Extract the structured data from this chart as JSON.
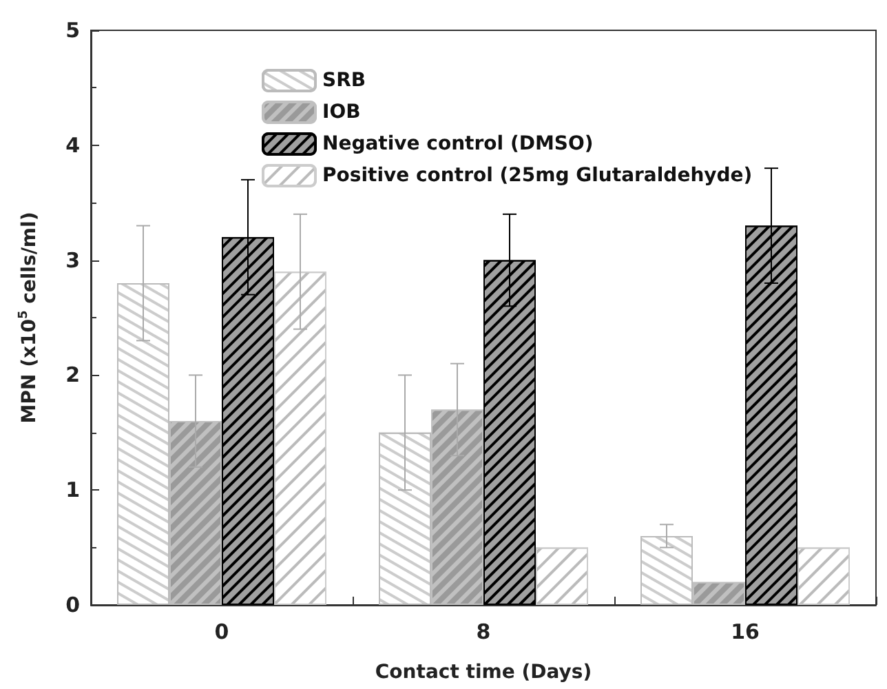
{
  "chart_data": {
    "type": "bar",
    "xlabel": "Contact time (Days)",
    "ylabel": "MPN (x10$^{5}$ cells/ml)",
    "categories": [
      "0",
      "8",
      "16"
    ],
    "series": [
      {
        "name": "SRB",
        "color": "#ffffff",
        "values": [
          2.8,
          1.5,
          0.6
        ],
        "errors": [
          0.5,
          0.5,
          0.1
        ]
      },
      {
        "name": "IOB",
        "color": "#c0c0c0",
        "values": [
          1.6,
          1.7,
          0.2
        ],
        "errors": [
          0.4,
          0.4,
          null
        ]
      },
      {
        "name": "Negative control (DMSO)",
        "color": "#a0a0a0",
        "values": [
          3.2,
          3.0,
          3.3
        ],
        "errors": [
          0.5,
          0.4,
          0.5
        ]
      },
      {
        "name": "Positive control (25mg Glutaraldehyde)",
        "color": "#ffffff",
        "values": [
          2.9,
          0.5,
          0.5
        ],
        "errors": [
          0.5,
          null,
          null
        ]
      }
    ],
    "ylim": [
      0,
      5
    ],
    "yticks": [
      0,
      1,
      2,
      3,
      4,
      5
    ],
    "grid": false,
    "legend": "top"
  }
}
